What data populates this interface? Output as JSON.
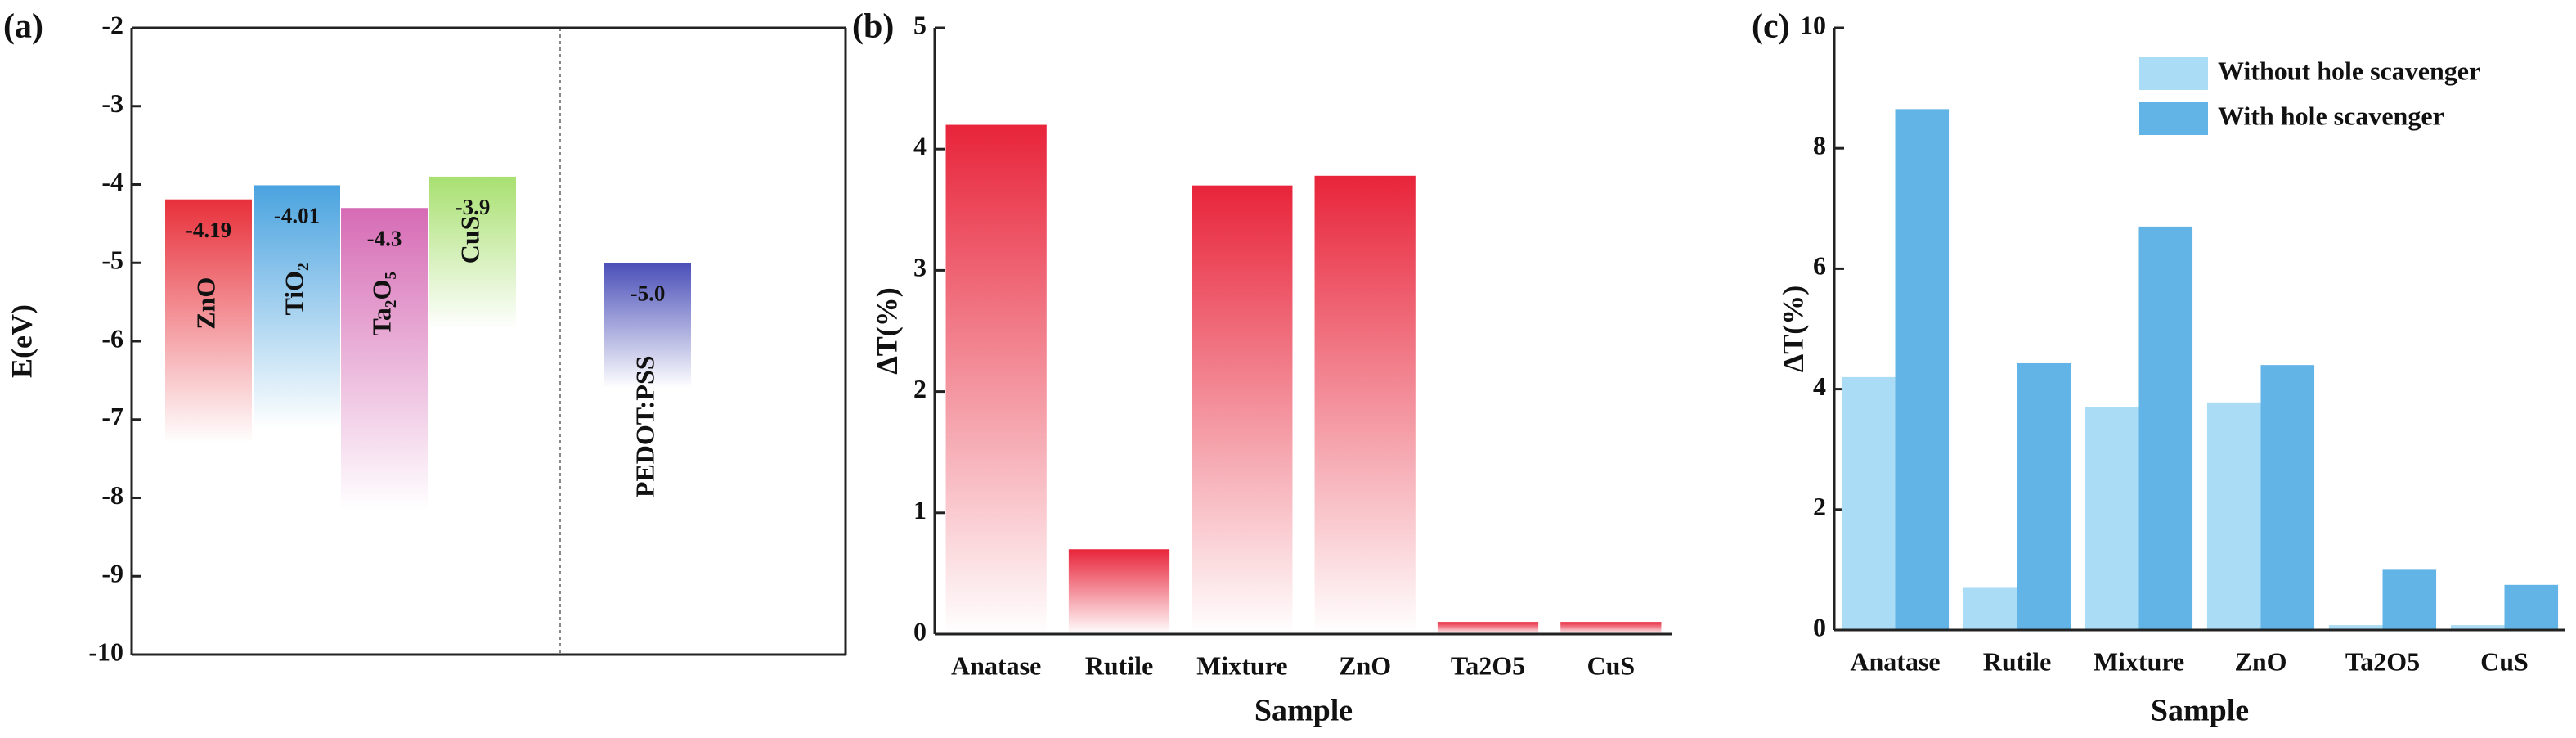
{
  "chart_data": [
    {
      "type": "energy_level",
      "panel": "(a)",
      "ylabel": "E(eV)",
      "categories": [
        "ZnO",
        "TiO₂",
        "Ta₂O₅",
        "CuS",
        "PEDOT:PSS"
      ],
      "values": [
        -4.19,
        -4.01,
        -4.3,
        -3.9,
        -5.0
      ],
      "value_labels": [
        "-4.19",
        "-4.01",
        "-4.3",
        "-3.9",
        "-5.0"
      ],
      "colors": [
        "#e8303a",
        "#4aa3df",
        "#d66bb5",
        "#a8e070",
        "#4a4fb8"
      ],
      "ylim": [
        -10,
        -2
      ],
      "yticks": [
        -2,
        -3,
        -4,
        -5,
        -6,
        -7,
        -8,
        -9,
        -10
      ]
    },
    {
      "type": "bar",
      "panel": "(b)",
      "xlabel": "Sample",
      "ylabel": "ΔT(%)",
      "categories": [
        "Anatase",
        "Rutile",
        "Mixture",
        "ZnO",
        "Ta2O5",
        "CuS"
      ],
      "values": [
        4.2,
        0.7,
        3.7,
        3.78,
        0.1,
        0.1
      ],
      "color": "#e8243a",
      "ylim": [
        0,
        5
      ],
      "yticks": [
        0,
        1,
        2,
        3,
        4,
        5
      ]
    },
    {
      "type": "grouped_bar",
      "panel": "(c)",
      "xlabel": "Sample",
      "ylabel": "ΔT(%)",
      "categories": [
        "Anatase",
        "Rutile",
        "Mixture",
        "ZnO",
        "Ta2O5",
        "CuS"
      ],
      "series": [
        {
          "name": "Without hole scavenger",
          "color": "#aadcf5",
          "values": [
            4.2,
            0.7,
            3.7,
            3.78,
            0.08,
            0.08
          ]
        },
        {
          "name": "With hole scavenger",
          "color": "#62b4e6",
          "values": [
            8.65,
            4.43,
            6.7,
            4.4,
            1.0,
            0.75
          ]
        }
      ],
      "legend": "upper right",
      "ylim": [
        0,
        10
      ],
      "yticks": [
        0,
        2,
        4,
        6,
        8,
        10
      ]
    }
  ]
}
